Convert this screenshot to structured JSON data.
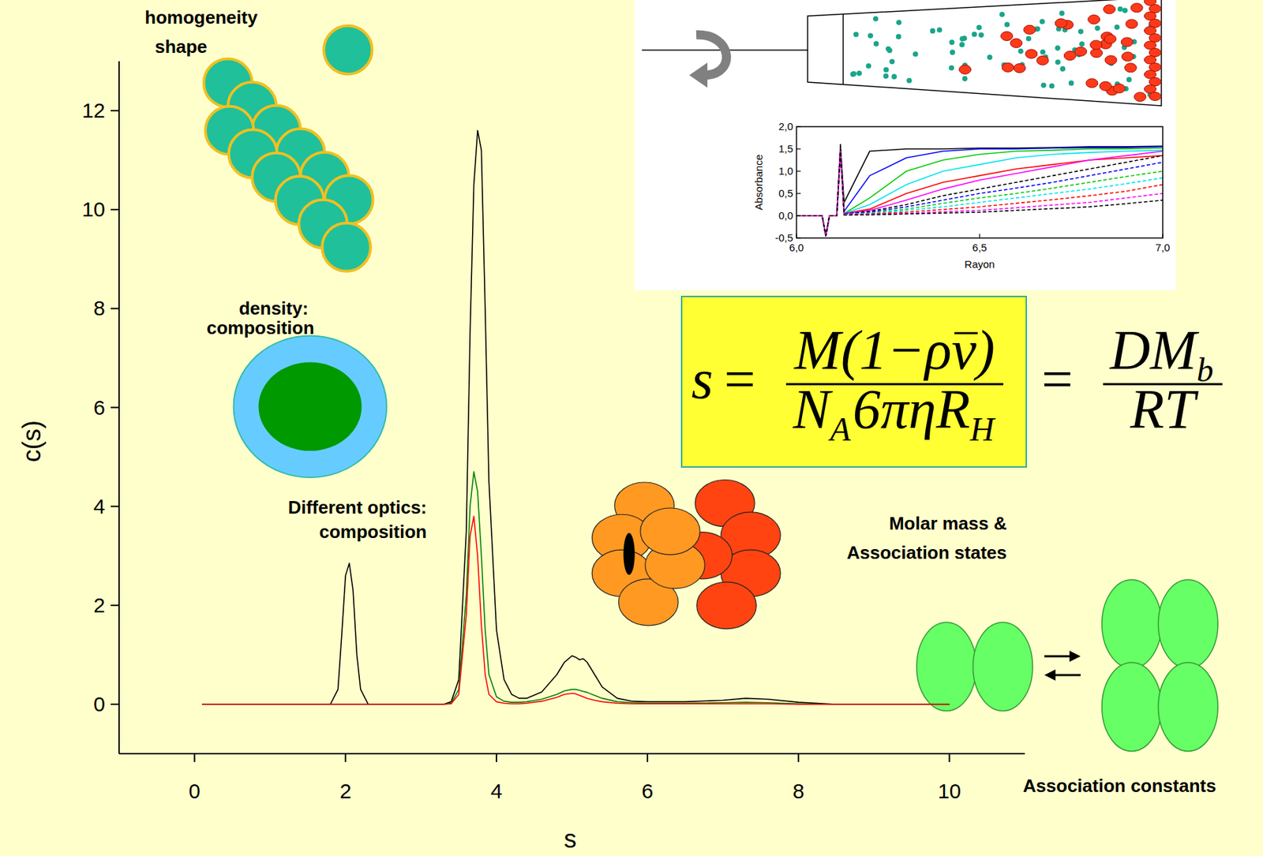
{
  "chart_data": [
    {
      "type": "line",
      "xlabel": "s",
      "ylabel": "c(s)",
      "annotations": [
        "homogeneity",
        "shape",
        "density:",
        "composition",
        "Different optics:",
        "composition",
        "Molar mass &",
        "Association states",
        "Association constants"
      ],
      "x": [
        0.1,
        1.8,
        1.9,
        1.95,
        2.0,
        2.05,
        2.1,
        2.15,
        2.2,
        2.3,
        3.3,
        3.4,
        3.5,
        3.6,
        3.65,
        3.7,
        3.75,
        3.8,
        3.85,
        3.9,
        4.0,
        4.1,
        4.2,
        4.3,
        4.4,
        4.6,
        4.8,
        4.9,
        5.0,
        5.05,
        5.1,
        5.15,
        5.2,
        5.3,
        5.4,
        5.6,
        5.8,
        6.0,
        6.5,
        7.0,
        7.3,
        7.6,
        8.0,
        8.5,
        9.0,
        10.0
      ],
      "series": [
        {
          "color": "#000000",
          "values": [
            0,
            0,
            0.3,
            1.4,
            2.6,
            2.85,
            2.3,
            1.0,
            0.3,
            0,
            0,
            0.05,
            0.5,
            3.5,
            7.5,
            10.5,
            11.6,
            11.2,
            8.0,
            4.5,
            1.5,
            0.5,
            0.2,
            0.12,
            0.12,
            0.25,
            0.6,
            0.85,
            0.98,
            0.95,
            0.9,
            0.92,
            0.85,
            0.6,
            0.35,
            0.12,
            0.06,
            0.05,
            0.05,
            0.08,
            0.12,
            0.1,
            0.04,
            0,
            0,
            0
          ]
        },
        {
          "color": "#008000",
          "values": [
            0,
            0,
            0,
            0,
            0,
            0,
            0,
            0,
            0,
            0,
            0,
            0.02,
            0.3,
            2.2,
            4.0,
            4.7,
            4.3,
            3.0,
            1.5,
            0.6,
            0.15,
            0.06,
            0.04,
            0.04,
            0.05,
            0.1,
            0.2,
            0.27,
            0.3,
            0.3,
            0.28,
            0.26,
            0.24,
            0.18,
            0.12,
            0.05,
            0.03,
            0.02,
            0.02,
            0.03,
            0.04,
            0.03,
            0.01,
            0,
            0,
            0
          ]
        },
        {
          "color": "#ff0000",
          "values": [
            0,
            0,
            0,
            0,
            0,
            0,
            0,
            0,
            0,
            0,
            0,
            0.01,
            0.2,
            1.8,
            3.4,
            3.8,
            3.0,
            1.6,
            0.6,
            0.2,
            0.05,
            0.02,
            0.01,
            0.01,
            0.02,
            0.06,
            0.14,
            0.2,
            0.22,
            0.21,
            0.18,
            0.15,
            0.12,
            0.08,
            0.05,
            0.02,
            0.01,
            0.01,
            0.01,
            0.01,
            0.01,
            0.01,
            0,
            0,
            0,
            0
          ]
        }
      ],
      "xlim": [
        -1,
        11
      ],
      "ylim": [
        -1,
        13
      ],
      "xticks": [
        0,
        2,
        4,
        6,
        8,
        10
      ],
      "yticks": [
        0,
        2,
        4,
        6,
        8,
        10,
        12
      ],
      "grid": false
    },
    {
      "type": "line",
      "xlabel": "Rayon",
      "ylabel": "Absorbance",
      "x": [
        6.0,
        6.07,
        6.08,
        6.09,
        6.11,
        6.12,
        6.13,
        6.2,
        6.3,
        6.4,
        6.5,
        6.6,
        6.7,
        6.8,
        6.9,
        7.0
      ],
      "series": [
        {
          "color": "#000000",
          "line_style": "solid",
          "values": [
            0,
            0,
            -0.45,
            0,
            0,
            1.6,
            0.3,
            1.45,
            1.5,
            1.5,
            1.52,
            1.52,
            1.53,
            1.55,
            1.55,
            1.56
          ]
        },
        {
          "color": "#0000ff",
          "line_style": "solid",
          "values": [
            0,
            0,
            -0.45,
            0,
            0,
            1.5,
            0.1,
            0.9,
            1.3,
            1.45,
            1.5,
            1.5,
            1.52,
            1.53,
            1.53,
            1.55
          ]
        },
        {
          "color": "#00cc00",
          "line_style": "solid",
          "values": [
            0,
            0,
            -0.45,
            0,
            0,
            1.5,
            0.05,
            0.4,
            1.0,
            1.25,
            1.38,
            1.45,
            1.47,
            1.5,
            1.5,
            1.52
          ]
        },
        {
          "color": "#00e5ee",
          "line_style": "solid",
          "values": [
            0,
            0,
            -0.45,
            0,
            0,
            1.5,
            0.05,
            0.25,
            0.7,
            1.0,
            1.15,
            1.3,
            1.38,
            1.42,
            1.45,
            1.47
          ]
        },
        {
          "color": "#ff0000",
          "line_style": "solid",
          "values": [
            0,
            0,
            -0.45,
            0,
            0,
            1.5,
            0.05,
            0.15,
            0.5,
            0.75,
            0.9,
            1.05,
            1.15,
            1.25,
            1.3,
            1.35
          ]
        },
        {
          "color": "#ff00ff",
          "line_style": "solid",
          "values": [
            0,
            0,
            -0.45,
            0,
            0,
            1.5,
            0.05,
            0.12,
            0.35,
            0.6,
            0.8,
            0.95,
            1.1,
            1.25,
            1.35,
            1.45
          ]
        },
        {
          "color": "#000000",
          "line_style": "dashed",
          "values": [
            0,
            0,
            -0.45,
            0,
            0,
            1.5,
            0.04,
            0.1,
            0.25,
            0.45,
            0.6,
            0.75,
            0.9,
            1.05,
            1.2,
            1.35
          ]
        },
        {
          "color": "#0000ff",
          "line_style": "dashed",
          "values": [
            0,
            0,
            -0.45,
            0,
            0,
            1.5,
            0.04,
            0.08,
            0.2,
            0.35,
            0.5,
            0.62,
            0.75,
            0.9,
            1.05,
            1.2
          ]
        },
        {
          "color": "#00cc00",
          "line_style": "dashed",
          "values": [
            0,
            0,
            -0.45,
            0,
            0,
            1.5,
            0.03,
            0.06,
            0.15,
            0.28,
            0.4,
            0.5,
            0.62,
            0.75,
            0.88,
            1.0
          ]
        },
        {
          "color": "#00e5ee",
          "line_style": "dashed",
          "values": [
            0,
            0,
            -0.45,
            0,
            0,
            1.5,
            0.03,
            0.05,
            0.12,
            0.2,
            0.3,
            0.4,
            0.5,
            0.6,
            0.72,
            0.85
          ]
        },
        {
          "color": "#ff0000",
          "line_style": "dashed",
          "values": [
            0,
            0,
            -0.45,
            0,
            0,
            1.5,
            0.02,
            0.04,
            0.08,
            0.14,
            0.2,
            0.28,
            0.36,
            0.45,
            0.55,
            0.7
          ]
        },
        {
          "color": "#ff00ff",
          "line_style": "dashed",
          "values": [
            0,
            0,
            -0.45,
            0,
            0,
            1.5,
            0.02,
            0.03,
            0.05,
            0.09,
            0.12,
            0.18,
            0.24,
            0.3,
            0.4,
            0.5
          ]
        },
        {
          "color": "#000000",
          "line_style": "dashed",
          "values": [
            0,
            0,
            -0.45,
            0,
            0,
            1.5,
            0.02,
            0.02,
            0.04,
            0.06,
            0.08,
            0.12,
            0.16,
            0.2,
            0.27,
            0.35
          ]
        }
      ],
      "xlim": [
        6,
        7
      ],
      "ylim": [
        -0.5,
        2
      ],
      "xticks": [
        {
          "value": 6,
          "label": "6,0"
        },
        {
          "value": 6.5,
          "label": "6,5"
        },
        {
          "value": 7,
          "label": "7,0"
        }
      ],
      "yticks": [
        {
          "value": -0.5,
          "label": "-0,5"
        },
        {
          "value": 0,
          "label": "0,0"
        },
        {
          "value": 0.5,
          "label": "0,5"
        },
        {
          "value": 1,
          "label": "1,0"
        },
        {
          "value": 1.5,
          "label": "1,5"
        },
        {
          "value": 2,
          "label": "2,0"
        }
      ],
      "grid": false
    }
  ],
  "equation": {
    "lhs": "s",
    "equals": "=",
    "numerator": [
      {
        "text": "M(1−ρ"
      },
      {
        "text": "v",
        "style": "overline"
      },
      {
        "text": ")"
      }
    ],
    "denominator": [
      {
        "text": "N"
      },
      {
        "text": "A",
        "style": "sub"
      },
      {
        "text": "6πηR"
      },
      {
        "text": "H",
        "style": "sub"
      }
    ],
    "numerator2": [
      {
        "text": "DM"
      },
      {
        "text": "b",
        "style": "sub"
      }
    ],
    "denominator2": [
      {
        "text": "RT"
      }
    ]
  }
}
